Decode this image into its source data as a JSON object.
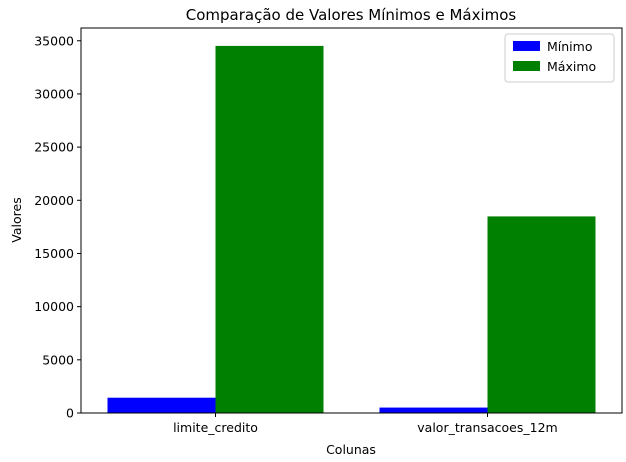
{
  "chart_data": {
    "type": "bar",
    "title": "Comparação de Valores Mínimos e Máximos",
    "xlabel": "Colunas",
    "ylabel": "Valores",
    "categories": [
      "limite_credito",
      "valor_transacoes_12m"
    ],
    "series": [
      {
        "name": "Mínimo",
        "values": [
          1438,
          510
        ],
        "color": "#0000ff"
      },
      {
        "name": "Máximo",
        "values": [
          34516,
          18484
        ],
        "color": "#008000"
      }
    ],
    "ylim": [
      0,
      36200
    ],
    "yticks": [
      0,
      5000,
      10000,
      15000,
      20000,
      25000,
      30000,
      35000
    ],
    "grid": false,
    "legend_position": "top-right"
  }
}
